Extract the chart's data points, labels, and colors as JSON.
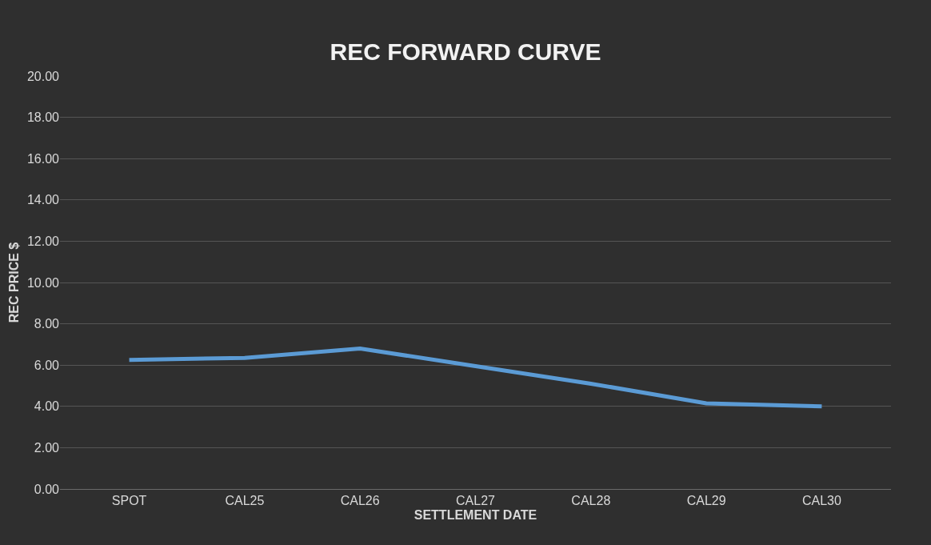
{
  "chart_data": {
    "type": "line",
    "title": "REC FORWARD CURVE",
    "xlabel": "SETTLEMENT DATE",
    "ylabel": "REC PRICE $",
    "categories": [
      "SPOT",
      "CAL25",
      "CAL26",
      "CAL27",
      "CAL28",
      "CAL29",
      "CAL30"
    ],
    "series": [
      {
        "color": "#5b9bd5",
        "values": [
          6.25,
          6.35,
          6.8,
          5.95,
          5.1,
          4.15,
          4.0
        ]
      }
    ],
    "ylim": [
      0,
      20
    ],
    "yticks": [
      {
        "value": 0,
        "label": "0.00"
      },
      {
        "value": 2,
        "label": "2.00"
      },
      {
        "value": 4,
        "label": "4.00"
      },
      {
        "value": 6,
        "label": "6.00"
      },
      {
        "value": 8,
        "label": "8.00"
      },
      {
        "value": 10,
        "label": "10.00"
      },
      {
        "value": 12,
        "label": "12.00"
      },
      {
        "value": 14,
        "label": "14.00"
      },
      {
        "value": 16,
        "label": "16.00"
      },
      {
        "value": 18,
        "label": "18.00"
      },
      {
        "value": 20,
        "label": "20.00"
      }
    ],
    "grid": "y",
    "marker": "none",
    "line_style": "solid"
  }
}
